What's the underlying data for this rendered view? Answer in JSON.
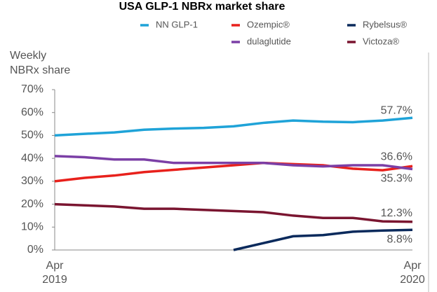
{
  "chart_data": {
    "type": "line",
    "title": "USA GLP-1 NBRx market share",
    "y_label": "Weekly NBRx share",
    "categories": [
      "Apr 2019",
      null,
      null,
      null,
      null,
      null,
      null,
      null,
      null,
      null,
      null,
      null,
      "Apr 2020"
    ],
    "ylim": [
      0,
      70
    ],
    "yticks": [
      {
        "value": 0,
        "label": "0%"
      },
      {
        "value": 10,
        "label": "10%"
      },
      {
        "value": 20,
        "label": "20%"
      },
      {
        "value": 30,
        "label": "30%"
      },
      {
        "value": 40,
        "label": "40%"
      },
      {
        "value": 50,
        "label": "50%"
      },
      {
        "value": 60,
        "label": "60%"
      },
      {
        "value": 70,
        "label": "70%"
      }
    ],
    "series": [
      {
        "name": "NN GLP-1",
        "color": "#1fa3d8",
        "values": [
          50,
          50.7,
          51.3,
          52.5,
          53,
          53.3,
          54,
          55.5,
          56.5,
          56,
          55.8,
          56.5,
          57.7
        ],
        "value_labels": [
          null,
          null,
          null,
          null,
          null,
          null,
          null,
          null,
          null,
          null,
          null,
          null,
          "57.7%"
        ]
      },
      {
        "name": "Ozempic®",
        "color": "#e8211c",
        "values": [
          30,
          31.5,
          32.5,
          34,
          35,
          36,
          37,
          38,
          37.5,
          37,
          35.5,
          34.8,
          36.6
        ],
        "value_labels": [
          null,
          null,
          null,
          null,
          null,
          null,
          null,
          null,
          null,
          null,
          null,
          null,
          "36.6%"
        ]
      },
      {
        "name": "Rybelsus®",
        "color": "#0a2a5c",
        "values": [
          null,
          null,
          null,
          null,
          null,
          null,
          0,
          3,
          6,
          6.5,
          8,
          8.5,
          8.8
        ],
        "value_labels": [
          null,
          null,
          null,
          null,
          null,
          null,
          null,
          null,
          null,
          null,
          null,
          null,
          "8.8%"
        ]
      },
      {
        "name": "dulaglutide",
        "color": "#7b3fa6",
        "values": [
          41,
          40.5,
          39.5,
          39.5,
          38,
          38,
          38,
          38,
          37,
          36.5,
          37,
          37,
          35.3
        ],
        "value_labels": [
          null,
          null,
          null,
          null,
          null,
          null,
          null,
          null,
          null,
          null,
          null,
          null,
          "35.3%"
        ]
      },
      {
        "name": "Victoza®",
        "color": "#7a1530",
        "values": [
          20,
          19.5,
          19,
          18,
          18,
          17.5,
          17,
          16.5,
          15,
          14,
          14,
          12.5,
          12.3
        ],
        "value_labels": [
          null,
          null,
          null,
          null,
          null,
          null,
          null,
          null,
          null,
          null,
          null,
          null,
          "12.3%"
        ]
      }
    ]
  }
}
